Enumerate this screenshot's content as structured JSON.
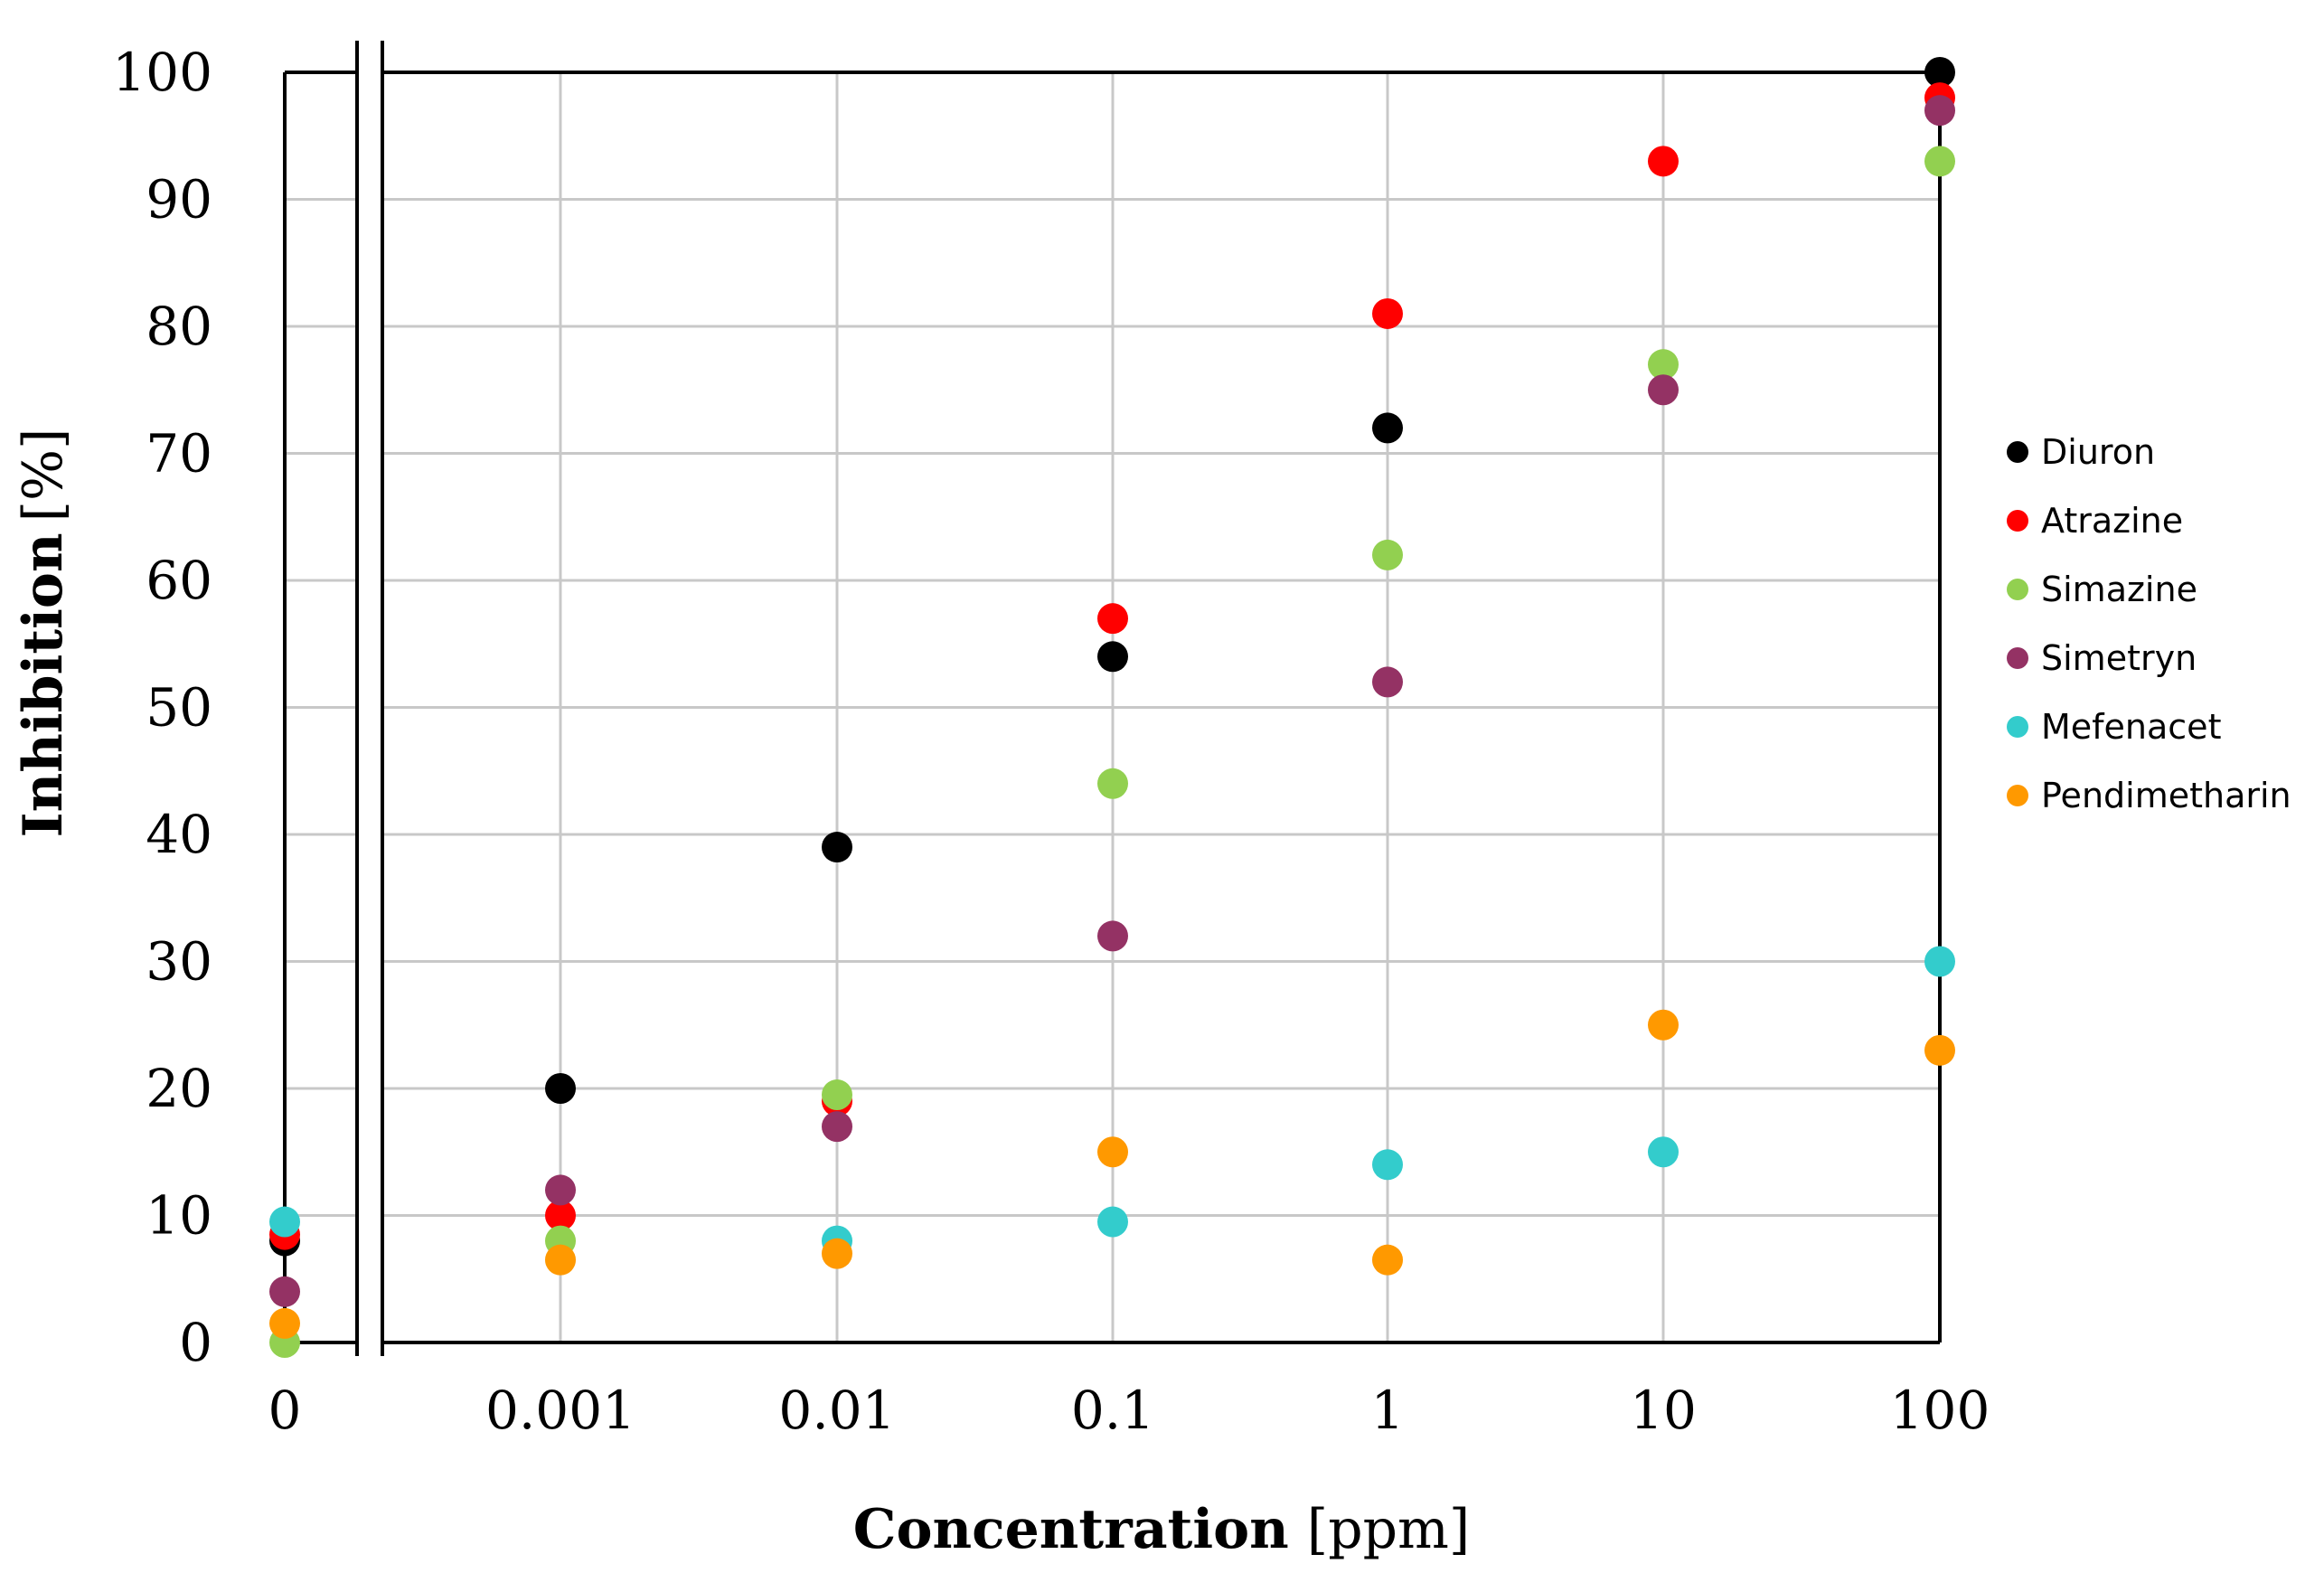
{
  "chart_data": {
    "type": "scatter",
    "title": "",
    "xlabel": "Concentration",
    "xlabel_unit": "[ppm]",
    "ylabel": "Inhibition",
    "ylabel_unit": "[%]",
    "ylim": [
      0,
      100
    ],
    "yticks": [
      "0",
      "10",
      "20",
      "30",
      "40",
      "50",
      "60",
      "70",
      "80",
      "90",
      "100"
    ],
    "categories": [
      "0",
      "0.001",
      "0.01",
      "0.1",
      "1",
      "10",
      "100"
    ],
    "axis_break": "between 0 and 0.001",
    "grid": true,
    "legend_position": "right",
    "series": [
      {
        "name": "Diuron",
        "color": "#000000",
        "values": [
          8,
          20,
          39,
          54,
          72,
          null,
          100
        ]
      },
      {
        "name": "Atrazine",
        "color": "#ff0000",
        "values": [
          8.5,
          10,
          19,
          57,
          81,
          93,
          98
        ]
      },
      {
        "name": "Simazine",
        "color": "#92d050",
        "values": [
          0,
          8,
          19.5,
          44,
          62,
          77,
          93
        ]
      },
      {
        "name": "Simetryn",
        "color": "#943264",
        "values": [
          4,
          12,
          17,
          32,
          52,
          75,
          97
        ]
      },
      {
        "name": "Mefenacet",
        "color": "#33cccc",
        "values": [
          9.5,
          null,
          8,
          9.5,
          14,
          15,
          30
        ]
      },
      {
        "name": "Pendimetharin",
        "color": "#ff9900",
        "values": [
          1.5,
          6.5,
          7,
          15,
          6.5,
          25,
          23
        ]
      }
    ]
  }
}
